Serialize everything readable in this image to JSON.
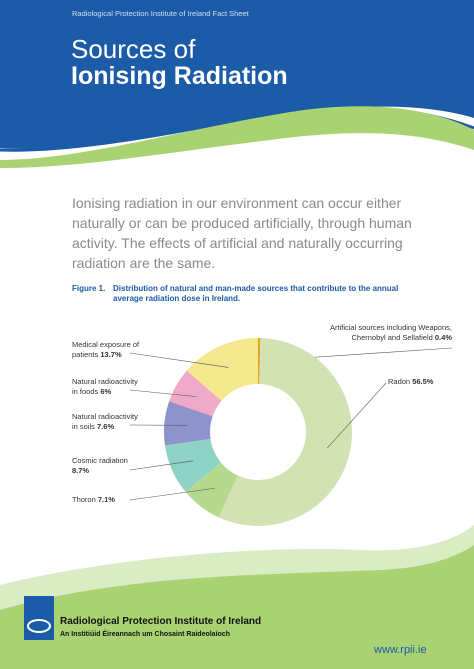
{
  "header": {
    "kicker": "Radiological Protection Institute of Ireland Fact Sheet",
    "title_line1": "Sources of",
    "title_line2": "Ionising Radiation"
  },
  "intro": "Ionising radiation in our environment can occur either naturally or can be produced artificially, through human activity. The effects of artificial and naturally occurring radiation are the same.",
  "figure": {
    "label": "Figure 1.",
    "caption": "Distribution of natural and man-made sources that contribute to the annual average radiation dose in Ireland."
  },
  "chart_data": {
    "type": "pie",
    "donut": true,
    "categories": [
      "Artificial sources including Weapons, Chernobyl and Sellafield",
      "Radon",
      "Thoron",
      "Cosmic radiation",
      "Natural radioactivity in soils",
      "Natural radioactivity in foods",
      "Medical exposure of patients"
    ],
    "values": [
      0.4,
      56.5,
      7.1,
      8.7,
      7.6,
      6,
      13.7
    ],
    "value_labels": [
      "0.4%",
      "56.5%",
      "7.1%",
      "8.7%",
      "7.6%",
      "6%",
      "13.7%"
    ],
    "colors": [
      "#e3a51e",
      "#d3e2b3",
      "#b5da8e",
      "#8fd2c6",
      "#8f93cc",
      "#efa9c9",
      "#f4e88e"
    ]
  },
  "footer": {
    "org": "Radiological Protection Institute of Ireland",
    "org_irish": "An Institiúid Éireannach um Chosaint Raideolaíoch",
    "url": "www.rpii.ie"
  }
}
